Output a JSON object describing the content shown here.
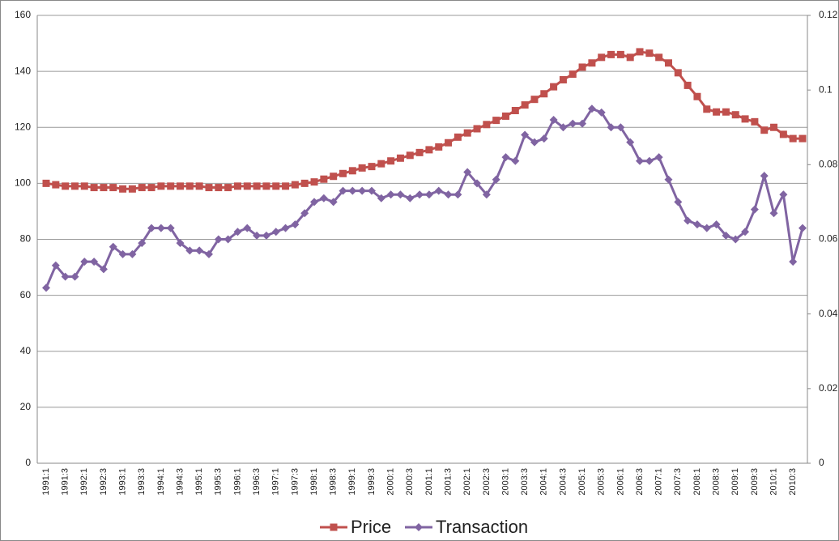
{
  "chart_data": {
    "type": "line",
    "categories": [
      "1991:1",
      null,
      "1991:3",
      null,
      "1992:1",
      null,
      "1992:3",
      null,
      "1993:1",
      null,
      "1993:3",
      null,
      "1994:1",
      null,
      "1994:3",
      null,
      "1995:1",
      null,
      "1995:3",
      null,
      "1996:1",
      null,
      "1996:3",
      null,
      "1997:1",
      null,
      "1997:3",
      null,
      "1998:1",
      null,
      "1998:3",
      null,
      "1999:1",
      null,
      "1999:3",
      null,
      "2000:1",
      null,
      "2000:3",
      null,
      "2001:1",
      null,
      "2001:3",
      null,
      "2002:1",
      null,
      "2002:3",
      null,
      "2003:1",
      null,
      "2003:3",
      null,
      "2004:1",
      null,
      "2004:3",
      null,
      "2005:1",
      null,
      "2005:3",
      null,
      "2006:1",
      null,
      "2006:3",
      null,
      "2007:1",
      null,
      "2007:3",
      null,
      "2008:1",
      null,
      "2008:3",
      null,
      "2009:1",
      null,
      "2009:3",
      null,
      "2010:1",
      null,
      "2010:3",
      null
    ],
    "series": [
      {
        "name": "Price",
        "color": "#c0504d",
        "marker": "square",
        "values": [
          100,
          99.5,
          99,
          99,
          99,
          98.5,
          98.5,
          98.5,
          98,
          98,
          98.5,
          98.5,
          99,
          99,
          99,
          99,
          99,
          98.5,
          98.5,
          98.5,
          99,
          99,
          99,
          99,
          99,
          99,
          99.5,
          100,
          100.5,
          101.5,
          102.5,
          103.5,
          104.5,
          105.5,
          106,
          107,
          108,
          109,
          110,
          111,
          112,
          113,
          114.5,
          116.5,
          118,
          119.5,
          121,
          122.5,
          124,
          126,
          128,
          130,
          132,
          134.5,
          137,
          139,
          141.5,
          143,
          145,
          146,
          146,
          145,
          147,
          146.5,
          145,
          143,
          139.5,
          135,
          131,
          126.5,
          125.5,
          125.5,
          124.5,
          123,
          122,
          119,
          120,
          117.5,
          116,
          116
        ]
      },
      {
        "name": "Transaction",
        "color": "#8064a2",
        "marker": "diamond",
        "axis": "y2",
        "values": [
          0.047,
          0.053,
          0.05,
          0.05,
          0.054,
          0.054,
          0.052,
          0.058,
          0.056,
          0.056,
          0.059,
          0.063,
          0.063,
          0.063,
          0.059,
          0.057,
          0.057,
          0.056,
          0.06,
          0.06,
          0.062,
          0.063,
          0.061,
          0.061,
          0.062,
          0.063,
          0.064,
          0.067,
          0.07,
          0.071,
          0.07,
          0.073,
          0.073,
          0.073,
          0.073,
          0.071,
          0.072,
          0.072,
          0.071,
          0.072,
          0.072,
          0.073,
          0.072,
          0.072,
          0.078,
          0.075,
          0.072,
          0.076,
          0.082,
          0.081,
          0.088,
          0.086,
          0.087,
          0.092,
          0.09,
          0.091,
          0.091,
          0.095,
          0.094,
          0.09,
          0.09,
          0.086,
          0.081,
          0.081,
          0.082,
          0.076,
          0.07,
          0.065,
          0.064,
          0.063,
          0.064,
          0.061,
          0.06,
          0.062,
          0.068,
          0.077,
          0.067,
          0.072,
          0.054,
          0.063
        ]
      }
    ],
    "ylim": [
      0,
      160
    ],
    "yticks": [
      0,
      20,
      40,
      60,
      80,
      100,
      120,
      140,
      160
    ],
    "y2lim": [
      0,
      0.12
    ],
    "y2ticks": [
      0,
      0.02,
      0.04,
      0.06,
      0.08,
      0.1,
      0.12
    ],
    "grid": true,
    "legend": "bottom"
  }
}
